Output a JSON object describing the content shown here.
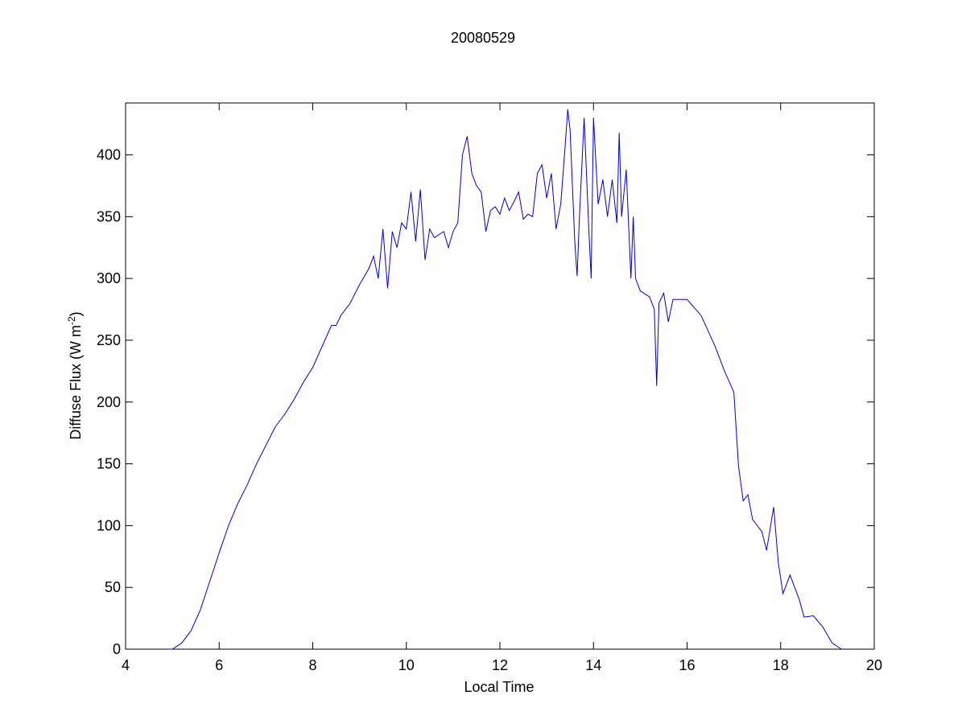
{
  "chart_data": {
    "type": "line",
    "title": "20080529",
    "xlabel": "Local Time",
    "ylabel": {
      "text": "Diffuse Flux (W m",
      "sup": "-2",
      "end": ")"
    },
    "xlim": [
      4,
      20
    ],
    "xticks": [
      4,
      6,
      8,
      10,
      12,
      14,
      16,
      18,
      20
    ],
    "ylim": [
      0,
      442
    ],
    "yticks": [
      0,
      50,
      100,
      150,
      200,
      250,
      300,
      350,
      400
    ],
    "grid": false,
    "x": [
      4.9,
      5.0,
      5.2,
      5.4,
      5.6,
      5.8,
      6.0,
      6.2,
      6.4,
      6.6,
      6.8,
      7.0,
      7.2,
      7.4,
      7.6,
      7.8,
      8.0,
      8.2,
      8.4,
      8.5,
      8.6,
      8.8,
      9.0,
      9.2,
      9.3,
      9.4,
      9.5,
      9.6,
      9.7,
      9.8,
      9.9,
      10.0,
      10.1,
      10.2,
      10.3,
      10.4,
      10.5,
      10.6,
      10.8,
      10.9,
      11.0,
      11.1,
      11.2,
      11.3,
      11.4,
      11.5,
      11.6,
      11.7,
      11.8,
      11.9,
      12.0,
      12.1,
      12.2,
      12.3,
      12.4,
      12.5,
      12.6,
      12.7,
      12.8,
      12.9,
      13.0,
      13.1,
      13.2,
      13.3,
      13.4,
      13.45,
      13.5,
      13.6,
      13.65,
      13.7,
      13.8,
      13.9,
      13.95,
      14.0,
      14.1,
      14.2,
      14.3,
      14.4,
      14.5,
      14.55,
      14.6,
      14.7,
      14.8,
      14.85,
      14.9,
      15.0,
      15.2,
      15.3,
      15.35,
      15.4,
      15.5,
      15.6,
      15.7,
      16.0,
      16.3,
      16.6,
      16.8,
      17.0,
      17.1,
      17.2,
      17.3,
      17.4,
      17.6,
      17.7,
      17.85,
      17.95,
      18.05,
      18.2,
      18.4,
      18.5,
      18.7,
      18.9,
      19.1,
      19.3
    ],
    "series": [
      {
        "name": "Diffuse Flux",
        "color": "#0000cc",
        "values": [
          0,
          0,
          5,
          15,
          32,
          55,
          78,
          100,
          118,
          133,
          150,
          165,
          180,
          190,
          202,
          216,
          228,
          245,
          262,
          262,
          270,
          280,
          295,
          308,
          318,
          300,
          340,
          292,
          338,
          325,
          345,
          340,
          370,
          330,
          372,
          315,
          340,
          333,
          338,
          325,
          338,
          345,
          400,
          415,
          385,
          375,
          370,
          338,
          355,
          358,
          352,
          365,
          355,
          362,
          370,
          348,
          352,
          350,
          385,
          392,
          365,
          385,
          340,
          360,
          410,
          437,
          420,
          330,
          302,
          350,
          430,
          340,
          300,
          430,
          360,
          380,
          350,
          380,
          345,
          418,
          350,
          388,
          300,
          350,
          300,
          290,
          285,
          275,
          213,
          280,
          288,
          265,
          283,
          283,
          270,
          245,
          225,
          208,
          148,
          120,
          125,
          105,
          95,
          80,
          115,
          70,
          45,
          60,
          40,
          26,
          27,
          18,
          5,
          0
        ]
      }
    ]
  }
}
